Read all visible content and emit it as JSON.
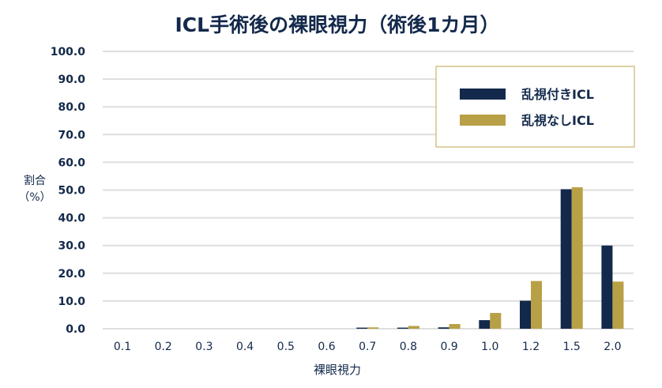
{
  "chart_data": {
    "type": "bar",
    "title": "ICL手術後の裸眼視力（術後1カ月）",
    "xlabel": "裸眼視力",
    "ylabel": [
      "割合",
      "（%）"
    ],
    "ylim": [
      0,
      100
    ],
    "yticks": [
      "0.0",
      "10.0",
      "20.0",
      "30.0",
      "40.0",
      "50.0",
      "60.0",
      "70.0",
      "80.0",
      "90.0",
      "100.0"
    ],
    "grid": true,
    "legend_position": "top-right",
    "categories": [
      "0.1",
      "0.2",
      "0.3",
      "0.4",
      "0.5",
      "0.6",
      "0.7",
      "0.8",
      "0.9",
      "1.0",
      "1.2",
      "1.5",
      "2.0"
    ],
    "series": [
      {
        "name": "乱視付きICL",
        "color": "#13294b",
        "values": [
          0,
          0,
          0,
          0,
          0,
          0,
          0.4,
          0.4,
          0.5,
          3.1,
          10.1,
          50.3,
          30.0
        ]
      },
      {
        "name": "乱視なしICL",
        "color": "#b8a046",
        "values": [
          0,
          0,
          0,
          0,
          0,
          0,
          0.5,
          1.0,
          1.7,
          5.7,
          17.2,
          51.0,
          17.0
        ]
      }
    ]
  }
}
